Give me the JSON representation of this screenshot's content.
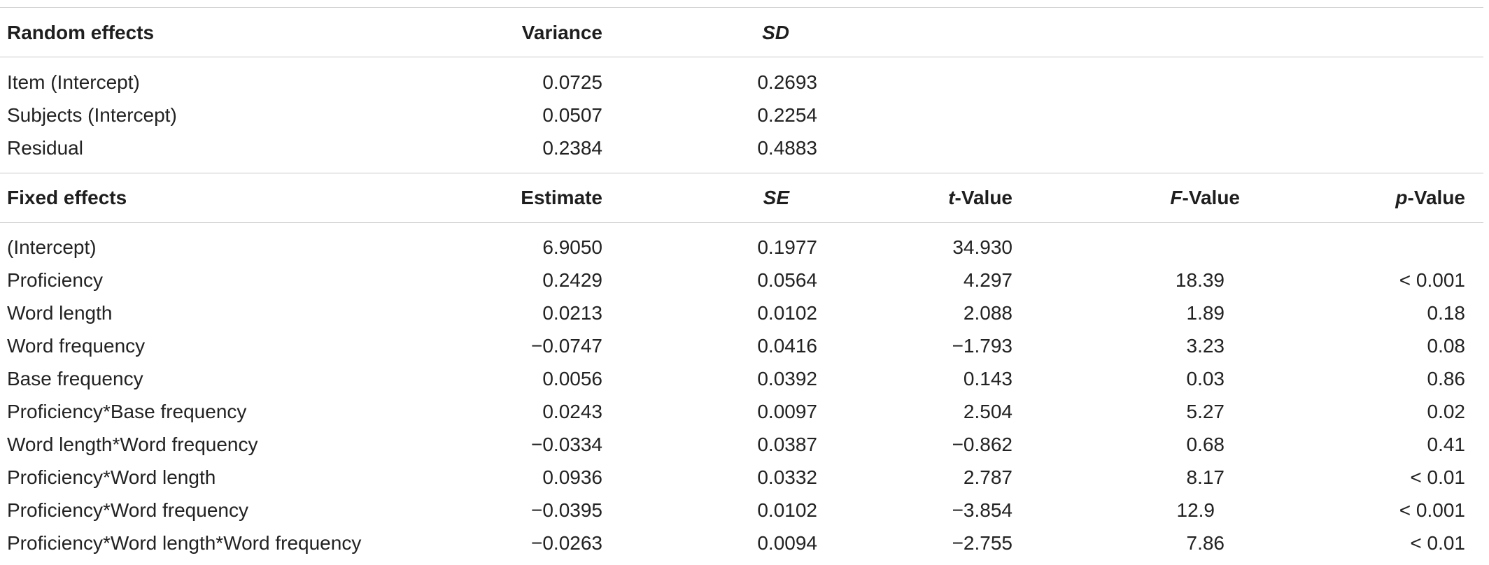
{
  "random_effects": {
    "headers": {
      "label": "Random effects",
      "variance": "Variance",
      "sd": "SD"
    },
    "rows": [
      {
        "label": "Item (Intercept)",
        "variance": "0.0725",
        "sd": "0.2693"
      },
      {
        "label": "Subjects (Intercept)",
        "variance": "0.0507",
        "sd": "0.2254"
      },
      {
        "label": "Residual",
        "variance": "0.2384",
        "sd": "0.4883"
      }
    ]
  },
  "fixed_effects": {
    "headers": {
      "label": "Fixed effects",
      "estimate": "Estimate",
      "se": "SE",
      "t_italic": "t",
      "t_rest": "-Value",
      "f_italic": "F",
      "f_rest": "-Value",
      "p_italic": "p",
      "p_rest": "-Value"
    },
    "rows": [
      {
        "label": "(Intercept)",
        "estimate": "6.9050",
        "se": "0.1977",
        "t": "34.930",
        "f": "",
        "p": ""
      },
      {
        "label": "Proficiency",
        "estimate": "0.2429",
        "se": "0.0564",
        "t": "4.297",
        "f": "18.39",
        "p": "< 0.001"
      },
      {
        "label": "Word length",
        "estimate": "0.0213",
        "se": "0.0102",
        "t": "2.088",
        "f": "1.89",
        "p": "0.18"
      },
      {
        "label": "Word frequency",
        "estimate": "−0.0747",
        "se": "0.0416",
        "t": "−1.793",
        "f": "3.23",
        "p": "0.08"
      },
      {
        "label": "Base frequency",
        "estimate": "0.0056",
        "se": "0.0392",
        "t": "0.143",
        "f": "0.03",
        "p": "0.86"
      },
      {
        "label": "Proficiency*Base frequency",
        "estimate": "0.0243",
        "se": "0.0097",
        "t": "2.504",
        "f": "5.27",
        "p": "0.02"
      },
      {
        "label": "Word length*Word frequency",
        "estimate": "−0.0334",
        "se": "0.0387",
        "t": "−0.862",
        "f": "0.68",
        "p": "0.41"
      },
      {
        "label": "Proficiency*Word length",
        "estimate": "0.0936",
        "se": "0.0332",
        "t": "2.787",
        "f": "8.17",
        "p": "< 0.01"
      },
      {
        "label": "Proficiency*Word frequency",
        "estimate": "−0.0395",
        "se": "0.0102",
        "t": "−3.854",
        "f": "12.9",
        "p": "< 0.001"
      },
      {
        "label": "Proficiency*Word length*Word frequency",
        "estimate": "−0.0263",
        "se": "0.0094",
        "t": "−2.755",
        "f": "7.86",
        "p": "< 0.01"
      }
    ]
  }
}
